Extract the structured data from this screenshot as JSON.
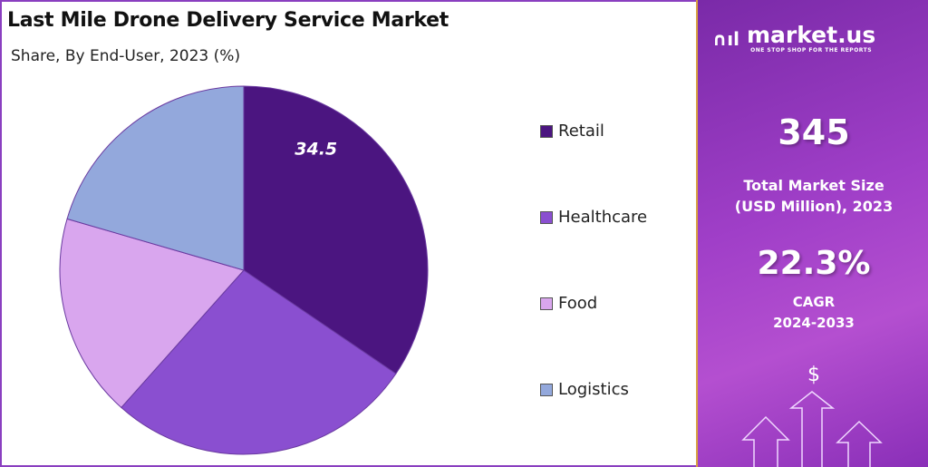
{
  "chart_data": {
    "type": "pie",
    "title": "Last Mile Drone Delivery Service Market",
    "subtitle": "Share, By End-User, 2023 (%)",
    "categories": [
      "Retail",
      "Healthcare",
      "Food",
      "Logistics"
    ],
    "values": [
      34.5,
      27.1,
      17.9,
      20.5
    ],
    "data_labels": [
      "34.5",
      "",
      "",
      ""
    ],
    "colors": [
      "#4b1580",
      "#8a4fd0",
      "#d9a6ee",
      "#93a8dc"
    ],
    "legend_position": "right"
  },
  "panel": {
    "logo_name": "market.us",
    "logo_tagline": "ONE STOP SHOP FOR THE REPORTS",
    "market_size": "345",
    "market_size_label_1": "Total Market Size",
    "market_size_label_2": "(USD Million), 2023",
    "cagr": "22.3%",
    "cagr_label": "CAGR",
    "cagr_period": "2024-2033",
    "currency_symbol": "$"
  }
}
